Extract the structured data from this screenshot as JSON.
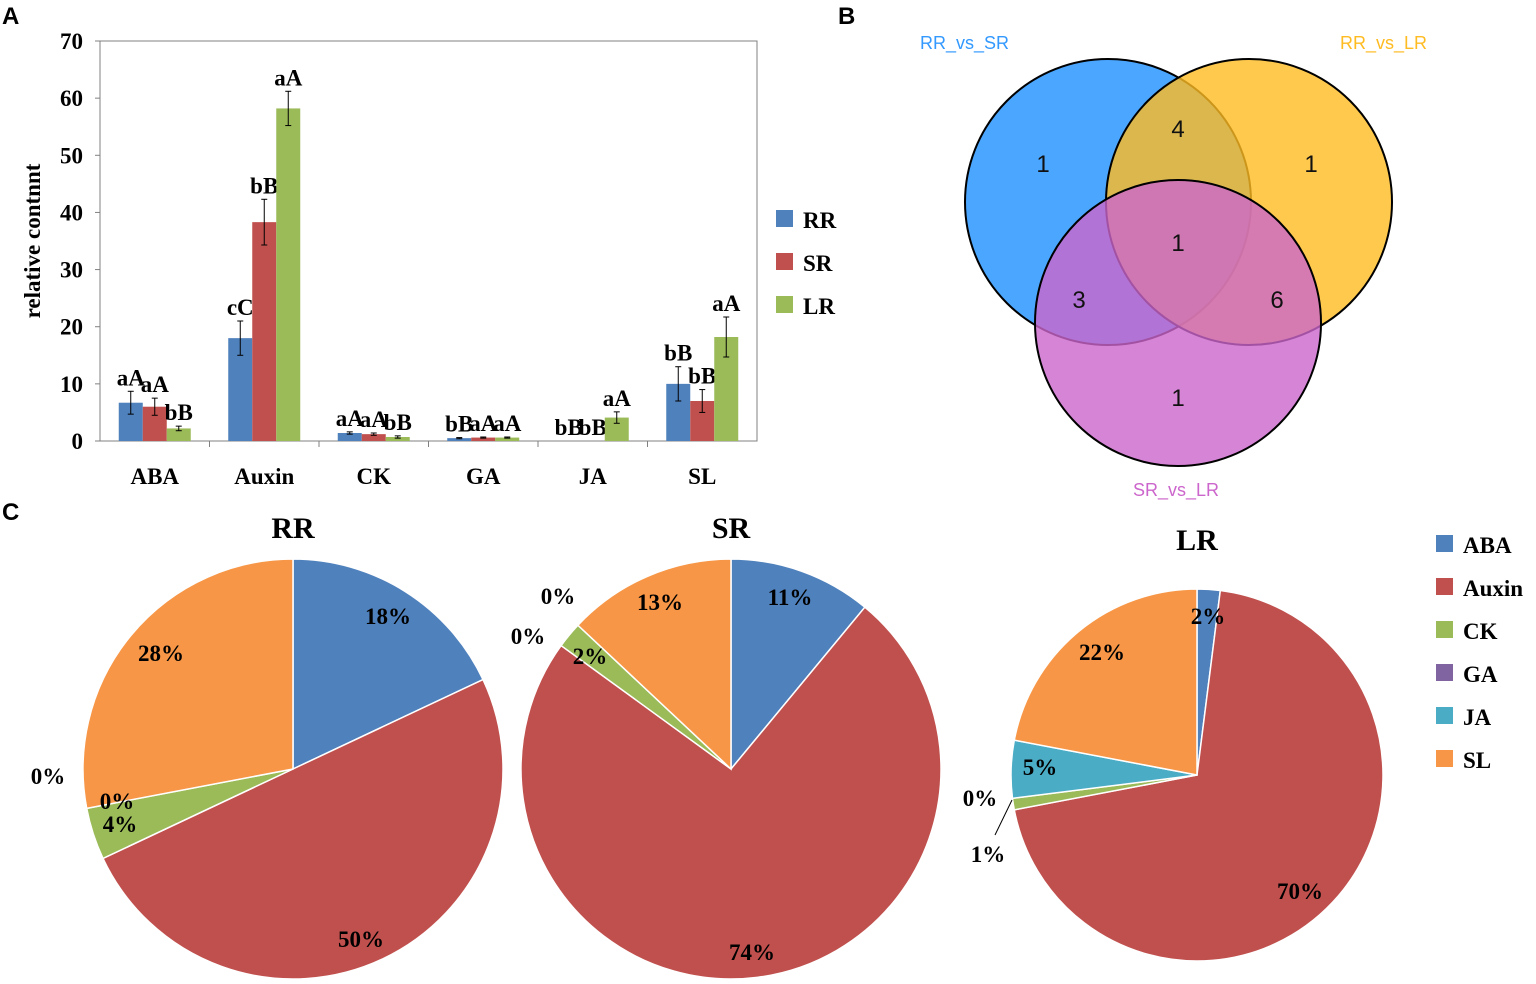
{
  "panel_labels": {
    "a": "A",
    "b": "B",
    "c": "C"
  },
  "colors": {
    "RR": "#4f81bd",
    "SR": "#c0504d",
    "LR": "#9bbb59"
  },
  "chart_data": [
    {
      "type": "bar",
      "panel": "A",
      "ylabel": "relative contnnt",
      "xlabel": "",
      "ylim": [
        0,
        70
      ],
      "yticks": [
        "0",
        "10",
        "20",
        "30",
        "40",
        "50",
        "60",
        "70"
      ],
      "categories": [
        "ABA",
        "Auxin",
        "CK",
        "GA",
        "JA",
        "SL"
      ],
      "series": [
        {
          "name": "RR",
          "color": "#4f81bd",
          "values": [
            6.7,
            18.0,
            1.4,
            0.5,
            0.0,
            10.0
          ],
          "errors": [
            2.0,
            3.0,
            0.2,
            0.1,
            0.0,
            3.0
          ],
          "labels": [
            "aA",
            "cC",
            "aA",
            "bB",
            "bB",
            "bB"
          ]
        },
        {
          "name": "SR",
          "color": "#c0504d",
          "values": [
            6.0,
            38.3,
            1.2,
            0.6,
            0.0,
            7.0
          ],
          "errors": [
            1.5,
            4.0,
            0.2,
            0.1,
            0.0,
            2.0
          ],
          "labels": [
            "aA",
            "bB",
            "aA",
            "aA",
            "bB",
            "bB"
          ]
        },
        {
          "name": "LR",
          "color": "#9bbb59",
          "values": [
            2.2,
            58.2,
            0.7,
            0.6,
            4.1,
            18.2
          ],
          "errors": [
            0.4,
            3.0,
            0.2,
            0.1,
            1.0,
            3.5
          ],
          "labels": [
            "bB",
            "aA",
            "bB",
            "aA",
            "aA",
            "aA"
          ]
        }
      ]
    },
    {
      "type": "venn",
      "panel": "B",
      "sets": [
        {
          "name": "RR_vs_SR",
          "color": "#1e90ff"
        },
        {
          "name": "RR_vs_LR",
          "color": "#ffbb22"
        },
        {
          "name": "SR_vs_LR",
          "color": "#cc66cc"
        }
      ],
      "regions": {
        "RR_vs_SR_only": "1",
        "RR_vs_LR_only": "1",
        "SR_vs_LR_only": "1",
        "RR_vs_SR_and_RR_vs_LR": "4",
        "RR_vs_SR_and_SR_vs_LR": "3",
        "RR_vs_LR_and_SR_vs_LR": "6",
        "all_three": "1"
      }
    },
    {
      "type": "pie",
      "panel": "C",
      "title": "RR",
      "categories": [
        "ABA",
        "Auxin",
        "CK",
        "GA",
        "JA",
        "SL"
      ],
      "values": [
        18,
        50,
        4,
        0,
        0,
        28
      ],
      "labels": [
        "18%",
        "50%",
        "4%",
        "0%",
        "0%",
        "28%"
      ]
    },
    {
      "type": "pie",
      "panel": "C",
      "title": "SR",
      "categories": [
        "ABA",
        "Auxin",
        "CK",
        "GA",
        "JA",
        "SL"
      ],
      "values": [
        11,
        74,
        2,
        0,
        0,
        13
      ],
      "labels": [
        "11%",
        "74%",
        "2%",
        "0%",
        "0%",
        "13%"
      ]
    },
    {
      "type": "pie",
      "panel": "C",
      "title": "LR",
      "categories": [
        "ABA",
        "Auxin",
        "CK",
        "GA",
        "JA",
        "SL"
      ],
      "values": [
        2,
        70,
        1,
        0,
        5,
        22
      ],
      "labels": [
        "2%",
        "70%",
        "1%",
        "0%",
        "5%",
        "22%"
      ]
    }
  ],
  "pie_legend": [
    {
      "name": "ABA",
      "color": "#4f81bd"
    },
    {
      "name": "Auxin",
      "color": "#c0504d"
    },
    {
      "name": "CK",
      "color": "#9bbb59"
    },
    {
      "name": "GA",
      "color": "#8064a2"
    },
    {
      "name": "JA",
      "color": "#4bacc6"
    },
    {
      "name": "SL",
      "color": "#f79646"
    }
  ]
}
